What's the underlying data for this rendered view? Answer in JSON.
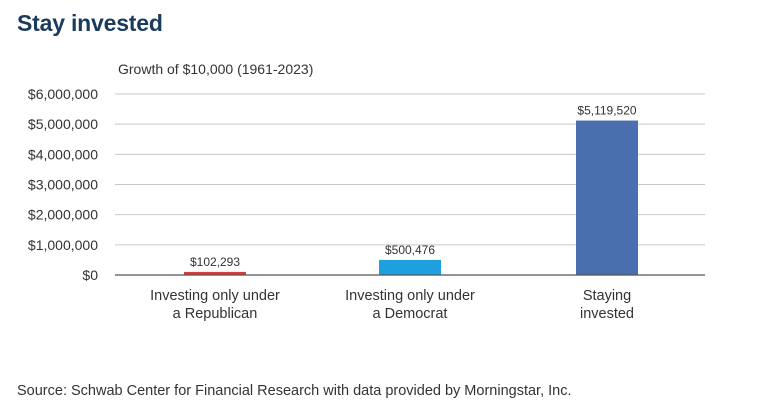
{
  "header": {
    "title": "Stay invested"
  },
  "footer": {
    "source": "Source: Schwab Center for Financial Research with data provided by Morningstar, Inc."
  },
  "chart_data": {
    "type": "bar",
    "subtitle": "Growth of $10,000 (1961-2023)",
    "categories": [
      [
        "Investing only under",
        "a Republican"
      ],
      [
        "Investing only under",
        "a Democrat"
      ],
      [
        "Staying",
        "invested"
      ]
    ],
    "values": [
      102293,
      500476,
      5119520
    ],
    "value_labels": [
      "$102,293",
      "$500,476",
      "$5,119,520"
    ],
    "colors": [
      "#d93a3a",
      "#1ea0e0",
      "#4a6fae"
    ],
    "yticks": [
      0,
      1000000,
      2000000,
      3000000,
      4000000,
      5000000,
      6000000
    ],
    "ytick_labels": [
      "$0",
      "$1,000,000",
      "$2,000,000",
      "$3,000,000",
      "$4,000,000",
      "$5,000,000",
      "$6,000,000"
    ],
    "ylim": [
      0,
      6000000
    ],
    "grid": true,
    "legend": false
  }
}
